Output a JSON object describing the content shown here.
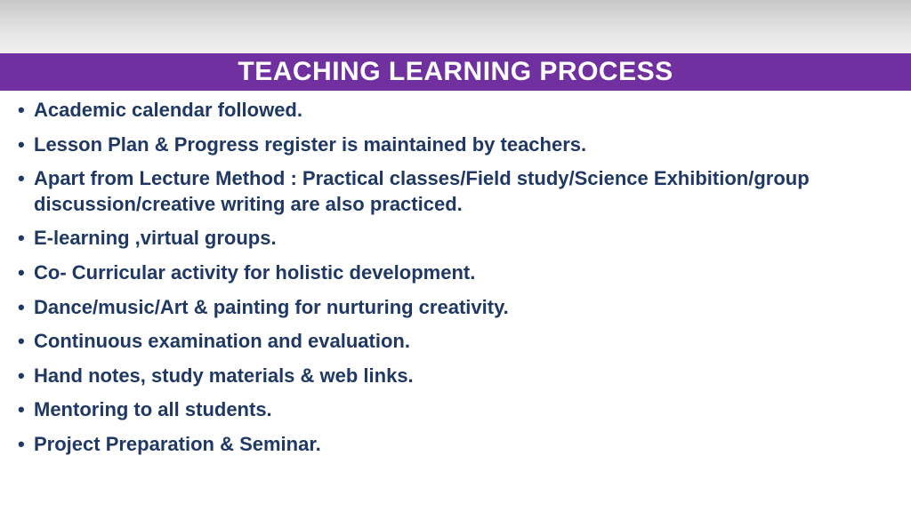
{
  "title": "TEACHING LEARNING PROCESS",
  "bullets": [
    "Academic calendar followed.",
    "Lesson Plan & Progress register is maintained by teachers.",
    "Apart from Lecture Method : Practical classes/Field study/Science Exhibition/group discussion/creative writing are also practiced.",
    "E-learning ,virtual groups.",
    "Co- Curricular activity for holistic development.",
    "Dance/music/Art & painting  for nurturing  creativity.",
    "Continuous examination and evaluation.",
    "Hand notes, study materials & web links.",
    "Mentoring to all students.",
    "Project Preparation & Seminar."
  ],
  "colors": {
    "title_bg": "#7030a0",
    "title_text": "#ffffff",
    "bullet_text": "#1f3864",
    "gradient_top": "#c8c8c8",
    "gradient_bottom": "#ffffff"
  },
  "typography": {
    "title_fontsize": 30,
    "bullet_fontsize": 22,
    "font_family": "Arial"
  }
}
